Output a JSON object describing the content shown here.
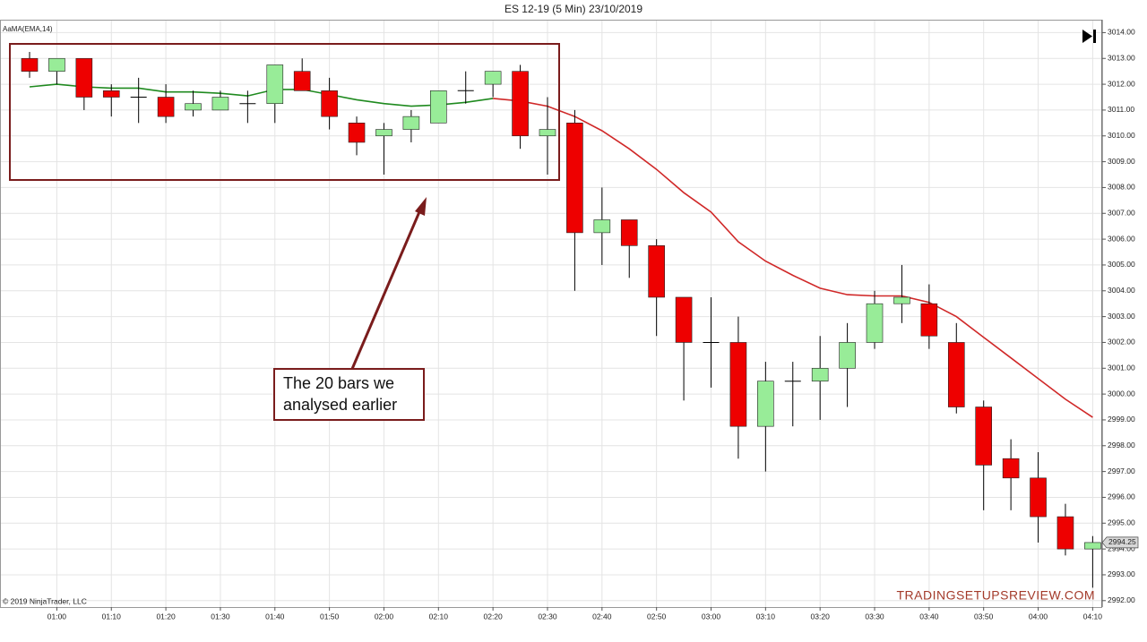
{
  "chart_data": {
    "type": "candlestick",
    "title": "ES 12-19 (5 Min)  23/10/2019",
    "indicator_label": "AaMA(EMA,14)",
    "copyright": "© 2019 NinjaTrader, LLC",
    "watermark": "TRADINGSETUPSREVIEW.COM",
    "annotation": [
      "The 20 bars we",
      "analysed earlier"
    ],
    "categories": [
      null,
      "01:00",
      null,
      "01:10",
      null,
      "01:20",
      null,
      "01:30",
      null,
      "01:40",
      null,
      "01:50",
      null,
      "02:00",
      null,
      "02:10",
      null,
      "02:20",
      null,
      "02:30",
      null,
      "02:40",
      null,
      "02:50",
      null,
      "03:00",
      null,
      "03:10",
      null,
      "03:20",
      null,
      "03:30",
      null,
      "03:40",
      null,
      "03:50",
      null,
      "04:00",
      null,
      "04:10"
    ],
    "open": [
      3013.0,
      3012.5,
      3013.0,
      3011.75,
      3011.5,
      3011.5,
      3011.0,
      3011.0,
      3011.25,
      3011.25,
      3012.5,
      3011.75,
      3010.5,
      3010.0,
      3010.25,
      3010.5,
      3011.75,
      3012.0,
      3012.5,
      3010.0,
      3010.5,
      3006.25,
      3006.75,
      3005.75,
      3003.75,
      3002.0,
      3002.0,
      2998.75,
      3000.5,
      3000.5,
      3001.0,
      3002.0,
      3003.5,
      3003.5,
      3002.0,
      2999.5,
      2997.5,
      2996.75,
      2995.25,
      2994.0
    ],
    "high": [
      3013.25,
      3013.0,
      3013.0,
      3012.0,
      3012.25,
      3012.0,
      3011.75,
      3011.75,
      3011.75,
      3012.75,
      3013.0,
      3012.25,
      3010.75,
      3010.5,
      3011.0,
      3011.75,
      3012.5,
      3012.5,
      3012.75,
      3011.5,
      3011.0,
      3008.0,
      3006.75,
      3006.0,
      3003.75,
      3003.75,
      3003.0,
      3001.25,
      3001.25,
      3002.25,
      3002.75,
      3004.0,
      3005.0,
      3004.25,
      3002.75,
      2999.75,
      2998.25,
      2997.75,
      2995.75,
      2994.5
    ],
    "low": [
      3012.25,
      3012.0,
      3011.0,
      3010.75,
      3010.5,
      3010.5,
      3010.75,
      3011.0,
      3010.5,
      3010.5,
      3011.75,
      3010.25,
      3009.25,
      3008.5,
      3009.75,
      3010.5,
      3011.25,
      3011.5,
      3009.5,
      3008.5,
      3004.0,
      3005.0,
      3004.5,
      3002.25,
      2999.75,
      3000.25,
      2997.5,
      2997.0,
      2998.75,
      2999.0,
      2999.5,
      3001.75,
      3002.75,
      3001.75,
      2999.25,
      2995.5,
      2995.5,
      2994.25,
      2993.75,
      2992.5
    ],
    "close": [
      3012.5,
      3013.0,
      3011.5,
      3011.5,
      3011.5,
      3010.75,
      3011.25,
      3011.5,
      3011.25,
      3012.75,
      3011.75,
      3010.75,
      3009.75,
      3010.25,
      3010.75,
      3011.75,
      3011.75,
      3012.5,
      3010.0,
      3010.25,
      3006.25,
      3006.75,
      3005.75,
      3003.75,
      3002.0,
      3002.0,
      2998.75,
      3000.5,
      3000.5,
      3001.0,
      3002.0,
      3003.5,
      3003.75,
      3002.25,
      2999.5,
      2997.25,
      2996.75,
      2995.25,
      2994.0,
      2994.25
    ],
    "up_color": "#98ec98",
    "down_color": "#ee0000",
    "series": [
      {
        "color": "#1f8a1f",
        "values": [
          3011.9,
          3012.0,
          3011.9,
          3011.85,
          3011.85,
          3011.7,
          3011.7,
          3011.65,
          3011.55,
          3011.8,
          3011.8,
          3011.6,
          3011.4,
          3011.25,
          3011.15,
          3011.2,
          3011.3,
          3011.45,
          null,
          null,
          null,
          null,
          null,
          null,
          null,
          null,
          null,
          null,
          null,
          null,
          null,
          null,
          null,
          null,
          null,
          null,
          null,
          null,
          null,
          null
        ]
      },
      {
        "color": "#d02828",
        "values": [
          null,
          null,
          null,
          null,
          null,
          null,
          null,
          null,
          null,
          null,
          null,
          null,
          null,
          null,
          null,
          null,
          null,
          3011.45,
          3011.35,
          3011.15,
          3010.75,
          3010.2,
          3009.5,
          3008.7,
          3007.8,
          3007.05,
          3005.9,
          3005.15,
          3004.6,
          3004.1,
          3003.85,
          3003.8,
          3003.8,
          3003.55,
          3003.0,
          3002.2,
          3001.4,
          3000.6,
          2999.8,
          2999.1
        ]
      }
    ],
    "last_price": 2994.25,
    "ylim": [
      2991.75,
      3014.5
    ],
    "yticks": [
      {
        "value": 2992,
        "label": "2992.00"
      },
      {
        "value": 2993,
        "label": "2993.00"
      },
      {
        "value": 2994,
        "label": "2994.00"
      },
      {
        "value": 2995,
        "label": "2995.00"
      },
      {
        "value": 2996,
        "label": "2996.00"
      },
      {
        "value": 2997,
        "label": "2997.00"
      },
      {
        "value": 2998,
        "label": "2998.00"
      },
      {
        "value": 2999,
        "label": "2999.00"
      },
      {
        "value": 3000,
        "label": "3000.00"
      },
      {
        "value": 3001,
        "label": "3001.00"
      },
      {
        "value": 3002,
        "label": "3002.00"
      },
      {
        "value": 3003,
        "label": "3003.00"
      },
      {
        "value": 3004,
        "label": "3004.00"
      },
      {
        "value": 3005,
        "label": "3005.00"
      },
      {
        "value": 3006,
        "label": "3006.00"
      },
      {
        "value": 3007,
        "label": "3007.00"
      },
      {
        "value": 3008,
        "label": "3008.00"
      },
      {
        "value": 3009,
        "label": "3009.00"
      },
      {
        "value": 3010,
        "label": "3010.00"
      },
      {
        "value": 3011,
        "label": "3011.00"
      },
      {
        "value": 3012,
        "label": "3012.00"
      },
      {
        "value": 3013,
        "label": "3013.00"
      },
      {
        "value": 3014,
        "label": "3014.00"
      }
    ],
    "grid": true
  }
}
